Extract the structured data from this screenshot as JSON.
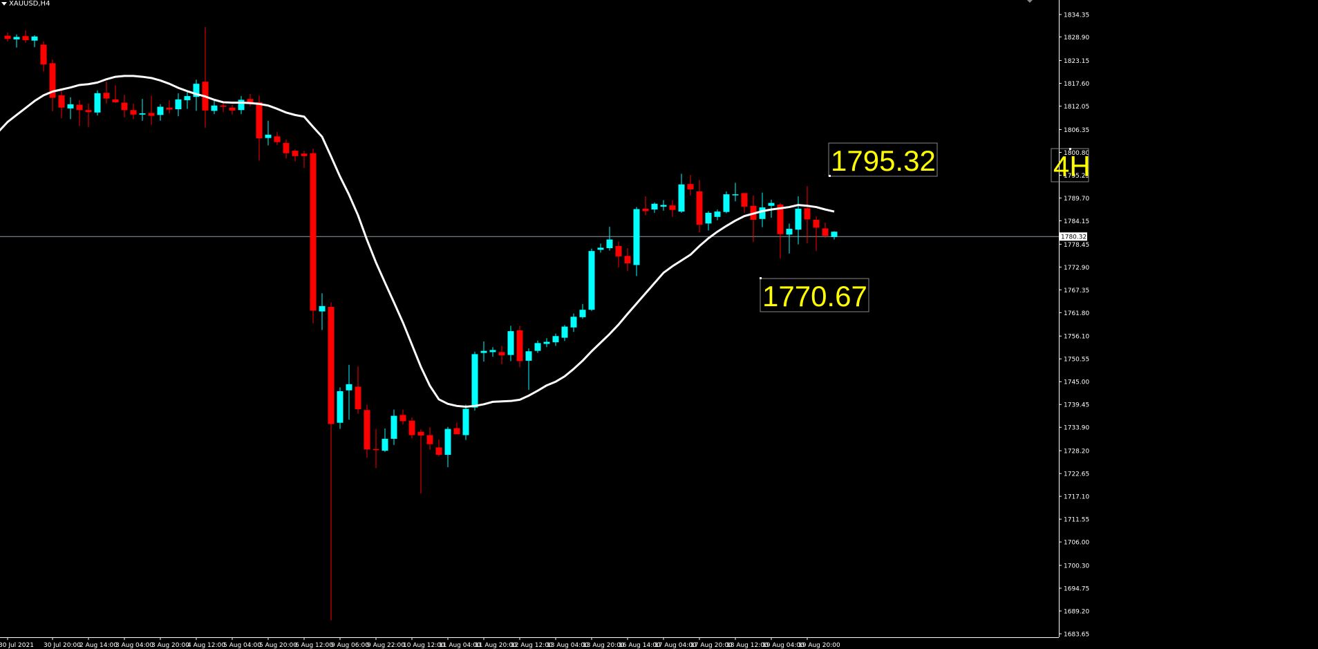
{
  "window": {
    "symbol_title": "XAUUSD,H4"
  },
  "colors": {
    "background": "#000000",
    "bull": "#00FFFF",
    "bear": "#FF0000",
    "ma": "#FFFFFF",
    "axis_text": "#FFFFFF",
    "annotation": "#FFFF00",
    "bid_line": "#8E9EA8"
  },
  "chart_data": {
    "type": "candlestick",
    "ylim": [
      1680.5,
      1837.0
    ],
    "y_ticks": [
      "1834.35",
      "1828.90",
      "1823.15",
      "1817.60",
      "1812.05",
      "1806.35",
      "1800.80",
      "1795.25",
      "1789.70",
      "1784.15",
      "1778.45",
      "1772.90",
      "1767.35",
      "1761.80",
      "1756.10",
      "1750.55",
      "1745.00",
      "1739.45",
      "1733.90",
      "1728.20",
      "1722.65",
      "1717.10",
      "1711.55",
      "1706.00",
      "1700.30",
      "1694.75",
      "1689.20",
      "1683.65"
    ],
    "x_ticks": [
      {
        "i": 0,
        "label": "30 Jul 2021"
      },
      {
        "i": 5,
        "label": "30 Jul 20:00"
      },
      {
        "i": 9,
        "label": "2 Aug 14:00"
      },
      {
        "i": 13,
        "label": "3 Aug 04:00"
      },
      {
        "i": 17,
        "label": "3 Aug 20:00"
      },
      {
        "i": 21,
        "label": "4 Aug 12:00"
      },
      {
        "i": 25,
        "label": "5 Aug 04:00"
      },
      {
        "i": 29,
        "label": "5 Aug 20:00"
      },
      {
        "i": 33,
        "label": "6 Aug 12:00"
      },
      {
        "i": 37,
        "label": "9 Aug 06:00"
      },
      {
        "i": 41,
        "label": "9 Aug 22:00"
      },
      {
        "i": 45,
        "label": "10 Aug 12:00"
      },
      {
        "i": 49,
        "label": "11 Aug 04:00"
      },
      {
        "i": 53,
        "label": "11 Aug 20:00"
      },
      {
        "i": 57,
        "label": "12 Aug 12:00"
      },
      {
        "i": 61,
        "label": "13 Aug 04:00"
      },
      {
        "i": 65,
        "label": "13 Aug 20:00"
      },
      {
        "i": 69,
        "label": "16 Aug 14:00"
      },
      {
        "i": 73,
        "label": "17 Aug 04:00"
      },
      {
        "i": 77,
        "label": "17 Aug 20:00"
      },
      {
        "i": 81,
        "label": "18 Aug 12:00"
      },
      {
        "i": 85,
        "label": "19 Aug 04:00"
      },
      {
        "i": 89,
        "label": "19 Aug 20:00"
      }
    ],
    "candles": [
      {
        "o": 1829.2,
        "h": 1830.0,
        "l": 1827.8,
        "c": 1828.4
      },
      {
        "o": 1828.3,
        "h": 1829.5,
        "l": 1826.3,
        "c": 1828.9
      },
      {
        "o": 1829.1,
        "h": 1830.5,
        "l": 1827.5,
        "c": 1828.1
      },
      {
        "o": 1828.0,
        "h": 1829.3,
        "l": 1826.4,
        "c": 1829.0
      },
      {
        "o": 1827.0,
        "h": 1827.8,
        "l": 1820.5,
        "c": 1822.2
      },
      {
        "o": 1822.5,
        "h": 1823.4,
        "l": 1810.8,
        "c": 1814.1
      },
      {
        "o": 1814.7,
        "h": 1816.0,
        "l": 1809.1,
        "c": 1811.7
      },
      {
        "o": 1811.5,
        "h": 1814.2,
        "l": 1808.9,
        "c": 1812.5
      },
      {
        "o": 1812.4,
        "h": 1813.5,
        "l": 1807.2,
        "c": 1811.1
      },
      {
        "o": 1811.1,
        "h": 1812.7,
        "l": 1807.0,
        "c": 1810.6
      },
      {
        "o": 1810.5,
        "h": 1815.9,
        "l": 1809.8,
        "c": 1815.2
      },
      {
        "o": 1815.3,
        "h": 1818.0,
        "l": 1812.7,
        "c": 1813.9
      },
      {
        "o": 1813.7,
        "h": 1817.1,
        "l": 1812.8,
        "c": 1813.0
      },
      {
        "o": 1812.9,
        "h": 1814.8,
        "l": 1809.3,
        "c": 1811.1
      },
      {
        "o": 1811.1,
        "h": 1812.7,
        "l": 1808.9,
        "c": 1810.0
      },
      {
        "o": 1810.0,
        "h": 1813.8,
        "l": 1808.5,
        "c": 1810.3
      },
      {
        "o": 1810.4,
        "h": 1814.6,
        "l": 1807.5,
        "c": 1809.7
      },
      {
        "o": 1809.9,
        "h": 1812.5,
        "l": 1808.5,
        "c": 1811.9
      },
      {
        "o": 1811.7,
        "h": 1813.5,
        "l": 1810.3,
        "c": 1811.2
      },
      {
        "o": 1811.3,
        "h": 1815.2,
        "l": 1809.6,
        "c": 1813.7
      },
      {
        "o": 1813.5,
        "h": 1815.6,
        "l": 1811.4,
        "c": 1814.5
      },
      {
        "o": 1814.3,
        "h": 1818.5,
        "l": 1810.9,
        "c": 1817.5
      },
      {
        "o": 1818.0,
        "h": 1831.3,
        "l": 1806.8,
        "c": 1811.0
      },
      {
        "o": 1810.9,
        "h": 1813.8,
        "l": 1810.1,
        "c": 1812.2
      },
      {
        "o": 1812.2,
        "h": 1813.3,
        "l": 1810.6,
        "c": 1811.9
      },
      {
        "o": 1811.7,
        "h": 1812.4,
        "l": 1810.0,
        "c": 1811.0
      },
      {
        "o": 1811.1,
        "h": 1814.5,
        "l": 1810.1,
        "c": 1813.6
      },
      {
        "o": 1813.8,
        "h": 1815.0,
        "l": 1812.0,
        "c": 1812.9
      },
      {
        "o": 1813.0,
        "h": 1814.6,
        "l": 1798.8,
        "c": 1804.2
      },
      {
        "o": 1804.3,
        "h": 1808.5,
        "l": 1802.5,
        "c": 1805.1
      },
      {
        "o": 1804.7,
        "h": 1805.8,
        "l": 1802.6,
        "c": 1803.3
      },
      {
        "o": 1803.1,
        "h": 1803.9,
        "l": 1799.3,
        "c": 1800.6
      },
      {
        "o": 1801.2,
        "h": 1801.5,
        "l": 1798.6,
        "c": 1799.9
      },
      {
        "o": 1800.5,
        "h": 1801.2,
        "l": 1797.0,
        "c": 1799.9
      },
      {
        "o": 1800.6,
        "h": 1801.7,
        "l": 1759.2,
        "c": 1762.3
      },
      {
        "o": 1762.1,
        "h": 1766.5,
        "l": 1757.6,
        "c": 1763.4
      },
      {
        "o": 1763.2,
        "h": 1764.3,
        "l": 1686.9,
        "c": 1734.7
      },
      {
        "o": 1735.0,
        "h": 1743.6,
        "l": 1733.5,
        "c": 1742.7
      },
      {
        "o": 1742.9,
        "h": 1749.1,
        "l": 1735.8,
        "c": 1744.4
      },
      {
        "o": 1743.8,
        "h": 1748.7,
        "l": 1737.2,
        "c": 1738.3
      },
      {
        "o": 1738.1,
        "h": 1739.4,
        "l": 1726.5,
        "c": 1728.5
      },
      {
        "o": 1728.6,
        "h": 1733.5,
        "l": 1724.0,
        "c": 1728.5
      },
      {
        "o": 1728.2,
        "h": 1733.6,
        "l": 1727.9,
        "c": 1731.1
      },
      {
        "o": 1731.1,
        "h": 1738.2,
        "l": 1729.6,
        "c": 1736.7
      },
      {
        "o": 1736.9,
        "h": 1738.2,
        "l": 1734.6,
        "c": 1735.4
      },
      {
        "o": 1735.5,
        "h": 1736.3,
        "l": 1731.2,
        "c": 1732.0
      },
      {
        "o": 1732.8,
        "h": 1733.4,
        "l": 1717.8,
        "c": 1731.9
      },
      {
        "o": 1732.0,
        "h": 1733.9,
        "l": 1728.4,
        "c": 1729.8
      },
      {
        "o": 1729.0,
        "h": 1730.9,
        "l": 1726.8,
        "c": 1727.2
      },
      {
        "o": 1727.2,
        "h": 1734.0,
        "l": 1724.2,
        "c": 1733.5
      },
      {
        "o": 1733.7,
        "h": 1735.1,
        "l": 1732.8,
        "c": 1732.2
      },
      {
        "o": 1732.0,
        "h": 1739.4,
        "l": 1730.8,
        "c": 1738.4
      },
      {
        "o": 1738.7,
        "h": 1752.3,
        "l": 1738.0,
        "c": 1751.7
      },
      {
        "o": 1752.0,
        "h": 1754.8,
        "l": 1749.9,
        "c": 1752.5
      },
      {
        "o": 1752.2,
        "h": 1753.4,
        "l": 1751.1,
        "c": 1752.7
      },
      {
        "o": 1752.2,
        "h": 1753.7,
        "l": 1749.2,
        "c": 1751.4
      },
      {
        "o": 1751.5,
        "h": 1758.6,
        "l": 1750.0,
        "c": 1757.3
      },
      {
        "o": 1757.5,
        "h": 1758.6,
        "l": 1748.5,
        "c": 1750.0
      },
      {
        "o": 1750.1,
        "h": 1753.1,
        "l": 1743.0,
        "c": 1752.4
      },
      {
        "o": 1752.5,
        "h": 1755.0,
        "l": 1752.0,
        "c": 1754.4
      },
      {
        "o": 1754.2,
        "h": 1755.6,
        "l": 1753.4,
        "c": 1754.7
      },
      {
        "o": 1754.6,
        "h": 1756.7,
        "l": 1753.7,
        "c": 1756.1
      },
      {
        "o": 1755.7,
        "h": 1758.8,
        "l": 1754.9,
        "c": 1758.4
      },
      {
        "o": 1758.2,
        "h": 1761.6,
        "l": 1757.1,
        "c": 1760.8
      },
      {
        "o": 1760.7,
        "h": 1763.9,
        "l": 1760.3,
        "c": 1762.5
      },
      {
        "o": 1762.5,
        "h": 1777.4,
        "l": 1762.2,
        "c": 1776.8
      },
      {
        "o": 1777.1,
        "h": 1778.6,
        "l": 1776.4,
        "c": 1777.6
      },
      {
        "o": 1777.5,
        "h": 1782.7,
        "l": 1776.9,
        "c": 1779.6
      },
      {
        "o": 1778.0,
        "h": 1779.1,
        "l": 1772.8,
        "c": 1775.5
      },
      {
        "o": 1775.6,
        "h": 1777.5,
        "l": 1771.9,
        "c": 1773.8
      },
      {
        "o": 1773.4,
        "h": 1787.5,
        "l": 1770.7,
        "c": 1787.0
      },
      {
        "o": 1787.1,
        "h": 1790.1,
        "l": 1785.5,
        "c": 1786.5
      },
      {
        "o": 1786.9,
        "h": 1788.6,
        "l": 1786.1,
        "c": 1788.3
      },
      {
        "o": 1787.6,
        "h": 1789.2,
        "l": 1786.6,
        "c": 1788.0
      },
      {
        "o": 1787.9,
        "h": 1789.2,
        "l": 1785.1,
        "c": 1786.8
      },
      {
        "o": 1786.4,
        "h": 1795.6,
        "l": 1786.1,
        "c": 1793.0
      },
      {
        "o": 1793.1,
        "h": 1795.3,
        "l": 1790.3,
        "c": 1791.8
      },
      {
        "o": 1791.3,
        "h": 1794.1,
        "l": 1781.3,
        "c": 1783.2
      },
      {
        "o": 1783.5,
        "h": 1786.5,
        "l": 1781.8,
        "c": 1786.1
      },
      {
        "o": 1785.1,
        "h": 1786.9,
        "l": 1784.3,
        "c": 1786.4
      },
      {
        "o": 1786.3,
        "h": 1791.3,
        "l": 1786.0,
        "c": 1790.6
      },
      {
        "o": 1790.4,
        "h": 1793.4,
        "l": 1788.9,
        "c": 1790.6
      },
      {
        "o": 1790.9,
        "h": 1790.6,
        "l": 1786.1,
        "c": 1787.6
      },
      {
        "o": 1787.8,
        "h": 1790.3,
        "l": 1779.0,
        "c": 1784.4
      },
      {
        "o": 1784.6,
        "h": 1791.0,
        "l": 1782.6,
        "c": 1787.4
      },
      {
        "o": 1787.8,
        "h": 1789.3,
        "l": 1784.9,
        "c": 1788.5
      },
      {
        "o": 1788.1,
        "h": 1788.5,
        "l": 1775.0,
        "c": 1780.9
      },
      {
        "o": 1780.8,
        "h": 1783.5,
        "l": 1776.2,
        "c": 1782.2
      },
      {
        "o": 1782.0,
        "h": 1790.1,
        "l": 1778.4,
        "c": 1787.1
      },
      {
        "o": 1787.2,
        "h": 1792.6,
        "l": 1778.7,
        "c": 1784.5
      },
      {
        "o": 1784.4,
        "h": 1785.2,
        "l": 1776.8,
        "c": 1782.5
      },
      {
        "o": 1782.3,
        "h": 1783.7,
        "l": 1780.0,
        "c": 1780.5
      },
      {
        "o": 1780.2,
        "h": 1781.6,
        "l": 1779.6,
        "c": 1781.5
      }
    ],
    "moving_average": [
      1808.2,
      1809.9,
      1811.6,
      1813.3,
      1814.7,
      1815.6,
      1816.1,
      1816.6,
      1817.2,
      1817.4,
      1817.8,
      1818.6,
      1819.2,
      1819.4,
      1819.4,
      1819.2,
      1818.9,
      1818.3,
      1817.5,
      1816.5,
      1815.7,
      1815.0,
      1814.4,
      1813.6,
      1813.0,
      1812.9,
      1812.9,
      1812.8,
      1812.6,
      1812.2,
      1811.4,
      1810.5,
      1809.9,
      1809.5,
      1807.0,
      1804.6,
      1799.8,
      1794.9,
      1790.5,
      1785.5,
      1779.5,
      1774.0,
      1769.1,
      1764.3,
      1759.4,
      1754.0,
      1748.6,
      1744.0,
      1740.7,
      1739.6,
      1739.1,
      1738.9,
      1739.1,
      1739.5,
      1740.1,
      1740.2,
      1740.3,
      1740.6,
      1741.6,
      1742.8,
      1744.1,
      1745.0,
      1746.3,
      1748.1,
      1750.1,
      1752.4,
      1754.5,
      1756.6,
      1758.9,
      1761.5,
      1764.0,
      1766.5,
      1769.0,
      1771.5,
      1773.1,
      1774.5,
      1775.9,
      1778.0,
      1779.9,
      1781.5,
      1782.9,
      1784.2,
      1785.3,
      1785.9,
      1786.5,
      1786.9,
      1787.2,
      1787.5,
      1788.0,
      1787.8,
      1787.5,
      1786.9,
      1786.4
    ],
    "current_price": "1780.32",
    "annotations": [
      {
        "text": "1795.32",
        "value": 1795.32,
        "index": 75
      },
      {
        "text": "1770.67",
        "value": 1770.67,
        "index": 69
      },
      {
        "text": "4H"
      }
    ]
  }
}
